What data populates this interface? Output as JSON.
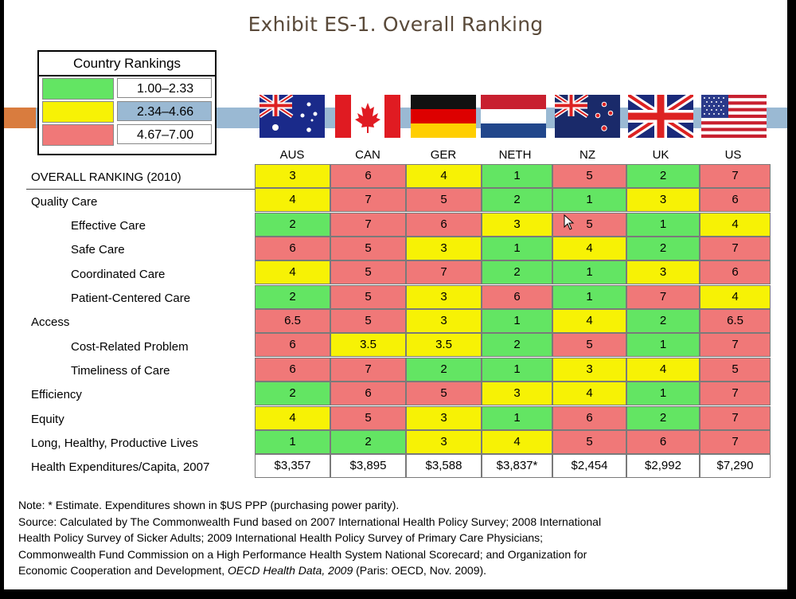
{
  "title": "Exhibit ES-1. Overall Ranking",
  "legend": {
    "header": "Country Rankings",
    "items": [
      {
        "range": "1.00–2.33",
        "color": "#63e563"
      },
      {
        "range": "2.34–4.66",
        "color": "#f7f205"
      },
      {
        "range": "4.67–7.00",
        "color": "#f07878"
      }
    ]
  },
  "countries": [
    "AUS",
    "CAN",
    "GER",
    "NETH",
    "NZ",
    "UK",
    "US"
  ],
  "rows": [
    {
      "label": "OVERALL RANKING (2010)",
      "indent": false,
      "values": [
        "3",
        "6",
        "4",
        "1",
        "5",
        "2",
        "7"
      ],
      "colors": [
        "y",
        "r",
        "y",
        "g",
        "r",
        "g",
        "r"
      ]
    },
    {
      "label": "Quality Care",
      "indent": false,
      "values": [
        "4",
        "7",
        "5",
        "2",
        "1",
        "3",
        "6"
      ],
      "colors": [
        "y",
        "r",
        "r",
        "g",
        "g",
        "y",
        "r"
      ]
    },
    {
      "label": "Effective Care",
      "indent": true,
      "values": [
        "2",
        "7",
        "6",
        "3",
        "5",
        "1",
        "4"
      ],
      "colors": [
        "g",
        "r",
        "r",
        "y",
        "r",
        "g",
        "y"
      ]
    },
    {
      "label": "Safe Care",
      "indent": true,
      "values": [
        "6",
        "5",
        "3",
        "1",
        "4",
        "2",
        "7"
      ],
      "colors": [
        "r",
        "r",
        "y",
        "g",
        "y",
        "g",
        "r"
      ]
    },
    {
      "label": "Coordinated Care",
      "indent": true,
      "values": [
        "4",
        "5",
        "7",
        "2",
        "1",
        "3",
        "6"
      ],
      "colors": [
        "y",
        "r",
        "r",
        "g",
        "g",
        "y",
        "r"
      ]
    },
    {
      "label": "Patient-Centered Care",
      "indent": true,
      "values": [
        "2",
        "5",
        "3",
        "6",
        "1",
        "7",
        "4"
      ],
      "colors": [
        "g",
        "r",
        "y",
        "r",
        "g",
        "r",
        "y"
      ]
    },
    {
      "label": "Access",
      "indent": false,
      "values": [
        "6.5",
        "5",
        "3",
        "1",
        "4",
        "2",
        "6.5"
      ],
      "colors": [
        "r",
        "r",
        "y",
        "g",
        "y",
        "g",
        "r"
      ]
    },
    {
      "label": "Cost-Related Problem",
      "indent": true,
      "values": [
        "6",
        "3.5",
        "3.5",
        "2",
        "5",
        "1",
        "7"
      ],
      "colors": [
        "r",
        "y",
        "y",
        "g",
        "r",
        "g",
        "r"
      ]
    },
    {
      "label": "Timeliness of Care",
      "indent": true,
      "values": [
        "6",
        "7",
        "2",
        "1",
        "3",
        "4",
        "5"
      ],
      "colors": [
        "r",
        "r",
        "g",
        "g",
        "y",
        "y",
        "r"
      ]
    },
    {
      "label": "Efficiency",
      "indent": false,
      "values": [
        "2",
        "6",
        "5",
        "3",
        "4",
        "1",
        "7"
      ],
      "colors": [
        "g",
        "r",
        "r",
        "y",
        "y",
        "g",
        "r"
      ]
    },
    {
      "label": "Equity",
      "indent": false,
      "values": [
        "4",
        "5",
        "3",
        "1",
        "6",
        "2",
        "7"
      ],
      "colors": [
        "y",
        "r",
        "y",
        "g",
        "r",
        "g",
        "r"
      ]
    },
    {
      "label": "Long, Healthy, Productive Lives",
      "indent": false,
      "values": [
        "1",
        "2",
        "3",
        "4",
        "5",
        "6",
        "7"
      ],
      "colors": [
        "g",
        "g",
        "y",
        "y",
        "r",
        "r",
        "r"
      ]
    },
    {
      "label": "Health Expenditures/Capita, 2007",
      "indent": false,
      "values": [
        "$3,357",
        "$3,895",
        "$3,588",
        "$3,837*",
        "$2,454",
        "$2,992",
        "$7,290"
      ],
      "colors": [
        "w",
        "w",
        "w",
        "w",
        "w",
        "w",
        "w"
      ]
    }
  ],
  "notes": {
    "line1": "Note: * Estimate. Expenditures shown in $US PPP (purchasing power parity).",
    "line2": "Source: Calculated by The Commonwealth Fund based on 2007 International Health Policy Survey; 2008 International",
    "line3": "Health Policy Survey of Sicker Adults; 2009 International Health Policy Survey of Primary Care Physicians;",
    "line4": "Commonwealth Fund Commission on a High Performance Health System National Scorecard; and Organization for",
    "line5_a": "Economic Cooperation and Development, ",
    "line5_b": "OECD Health Data, 2009",
    "line5_c": " (Paris: OECD, Nov. 2009)."
  }
}
